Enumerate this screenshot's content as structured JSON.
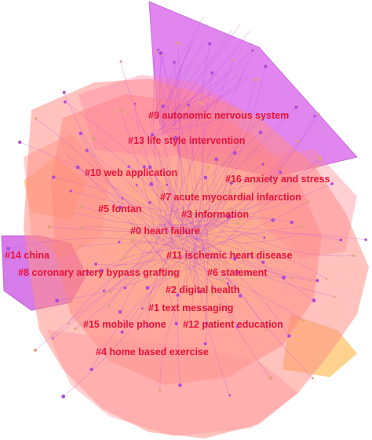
{
  "clusters": [
    {
      "id": "9",
      "label": "#9 autonomic nervous system",
      "color": "#d94be0"
    },
    {
      "id": "13",
      "label": "#13 life style intervention",
      "color": "#ff6fa0"
    },
    {
      "id": "10",
      "label": "#10 web application",
      "color": "#ff8a7a"
    },
    {
      "id": "16",
      "label": "#16 anxiety and stress",
      "color": "#ff7b8f"
    },
    {
      "id": "7",
      "label": "#7 acute myocardial infarction",
      "color": "#ff9a6a"
    },
    {
      "id": "5",
      "label": "#5 fontan",
      "color": "#ffa070"
    },
    {
      "id": "3",
      "label": "#3 information",
      "color": "#ff8a80"
    },
    {
      "id": "0",
      "label": "#0 heart failure",
      "color": "#ff7d7d"
    },
    {
      "id": "14",
      "label": "#14 china",
      "color": "#c94fe0"
    },
    {
      "id": "11",
      "label": "#11 ischemic heart disease",
      "color": "#ff9088"
    },
    {
      "id": "8",
      "label": "#8 coronary artery bypass grafting",
      "color": "#ff8c8c"
    },
    {
      "id": "6",
      "label": "#6 statement",
      "color": "#ff9a80"
    },
    {
      "id": "2",
      "label": "#2 digital health",
      "color": "#ff8585"
    },
    {
      "id": "1",
      "label": "#1 text messaging",
      "color": "#ff8a8a"
    },
    {
      "id": "15",
      "label": "#15 mobile phone",
      "color": "#ff9090"
    },
    {
      "id": "12",
      "label": "#12 patient education",
      "color": "#ff8f8f"
    },
    {
      "id": "4",
      "label": "#4 home based exercise",
      "color": "#ff9a9a"
    }
  ],
  "colors": {
    "label_text": "#e8123a",
    "magenta_hull": "#d65ee8",
    "salmon_hull": "#ff8f86",
    "orange_hull": "#ffb15c",
    "link": "#c04fe0"
  }
}
